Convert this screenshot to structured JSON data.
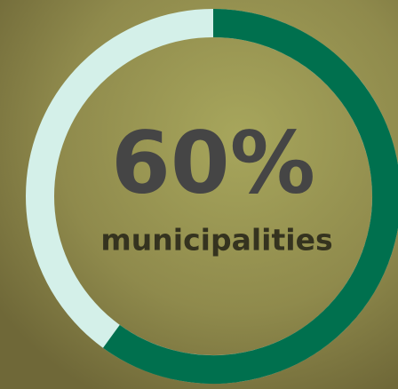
{
  "chart_data": {
    "type": "donut",
    "values": [
      60
    ],
    "value_labels": [
      "60%"
    ],
    "label": "municipalities",
    "range": [
      0,
      100
    ],
    "color": "#00704e",
    "track_color": "#d4f0e9"
  }
}
